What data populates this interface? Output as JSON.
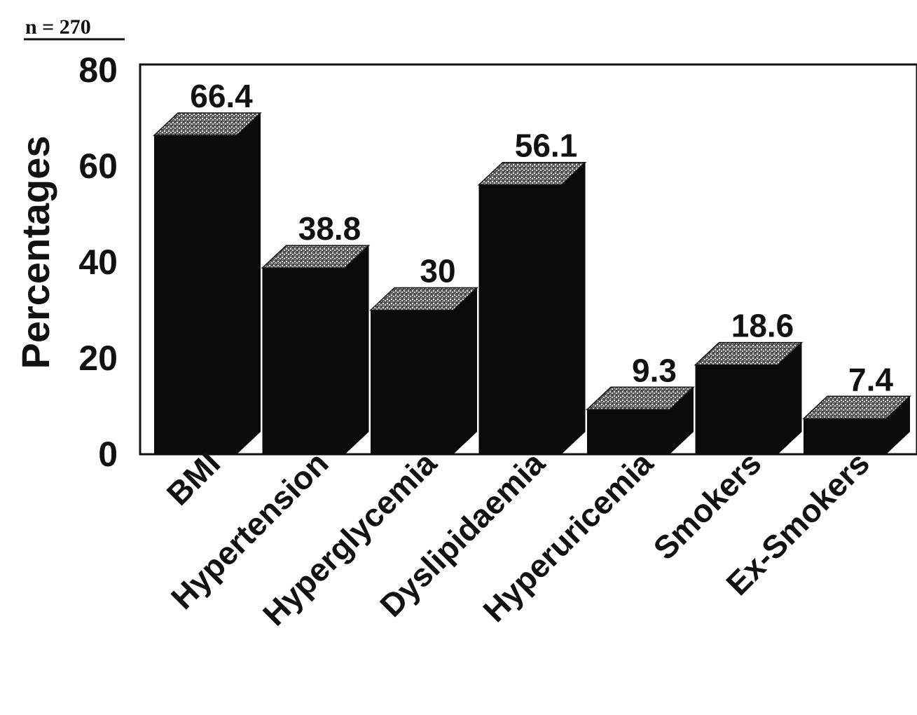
{
  "chart_data": {
    "type": "bar",
    "annotation": "n = 270",
    "ylabel": "Percentages",
    "xlabel": "",
    "ylim": [
      0,
      80
    ],
    "yticks": [
      0,
      20,
      40,
      60,
      80
    ],
    "yticks_labels": [
      "0",
      "20",
      "40",
      "60",
      "80"
    ],
    "categories": [
      "BMI",
      "Hypertension",
      "Hyperglycemia",
      "Dyslipidaemia",
      "Hyperuricemia",
      "Smokers",
      "Ex-Smokers"
    ],
    "values": [
      66.4,
      38.8,
      30,
      56.1,
      9.3,
      18.6,
      7.4
    ],
    "value_labels": [
      "66.4",
      "38.8",
      "30",
      "56.1",
      "9.3",
      "18.6",
      "7.4"
    ],
    "style": "3d",
    "grid": false,
    "colors": {
      "bar": "#0b0b0b",
      "bar_top": "#6a6a6a",
      "axis": "#111111"
    }
  }
}
